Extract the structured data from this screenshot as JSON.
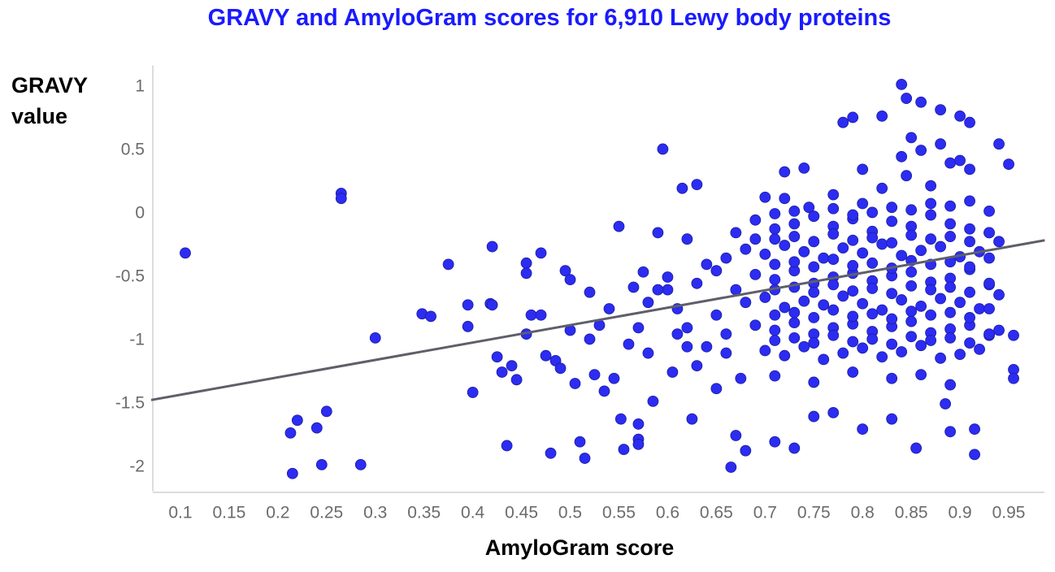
{
  "chart_data": {
    "type": "scatter",
    "title": "GRAVY and AmyloGram scores for 6,910 Lewy body proteins",
    "xlabel": "AmyloGram score",
    "ylabel": "GRAVY value",
    "color": "#2c2cf2",
    "xlim": [
      0.07,
      0.99
    ],
    "ylim": [
      -2.19,
      1.17
    ],
    "xticks": [
      0.1,
      0.15,
      0.2,
      0.25,
      0.3,
      0.35,
      0.4,
      0.45,
      0.5,
      0.55,
      0.6,
      0.65,
      0.7,
      0.75,
      0.8,
      0.85,
      0.9,
      0.95
    ],
    "yticks": [
      1,
      0.5,
      0,
      -0.5,
      -1,
      -1.5,
      -2
    ],
    "x": [
      0.105,
      0.265,
      0.265,
      0.213,
      0.22,
      0.215,
      0.245,
      0.24,
      0.25,
      0.285,
      0.3,
      0.348,
      0.357,
      0.375,
      0.395,
      0.395,
      0.4,
      0.418,
      0.42,
      0.42,
      0.425,
      0.43,
      0.435,
      0.44,
      0.445,
      0.455,
      0.455,
      0.455,
      0.46,
      0.47,
      0.47,
      0.475,
      0.48,
      0.485,
      0.49,
      0.495,
      0.5,
      0.5,
      0.505,
      0.51,
      0.515,
      0.52,
      0.52,
      0.525,
      0.53,
      0.535,
      0.54,
      0.545,
      0.55,
      0.552,
      0.555,
      0.56,
      0.565,
      0.57,
      0.57,
      0.57,
      0.575,
      0.58,
      0.585,
      0.59,
      0.595,
      0.6,
      0.605,
      0.61,
      0.615,
      0.62,
      0.625,
      0.63,
      0.64,
      0.65,
      0.66,
      0.665,
      0.67,
      0.68,
      0.69,
      0.7,
      0.71,
      0.72,
      0.73,
      0.74,
      0.75,
      0.77,
      0.78,
      0.79,
      0.8,
      0.82,
      0.83,
      0.84,
      0.845,
      0.855,
      0.86,
      0.88,
      0.885,
      0.89,
      0.9,
      0.91,
      0.915,
      0.915,
      0.95,
      0.955,
      0.955,
      0.955,
      0.94,
      0.94,
      0.6,
      0.61,
      0.62,
      0.63,
      0.64,
      0.65,
      0.66,
      0.67,
      0.62,
      0.58,
      0.57,
      0.59,
      0.63,
      0.66,
      0.65,
      0.675,
      0.67,
      0.72,
      0.745,
      0.77,
      0.8,
      0.82,
      0.845,
      0.87,
      0.89,
      0.91,
      0.69,
      0.71,
      0.73,
      0.75,
      0.77,
      0.79,
      0.81,
      0.83,
      0.85,
      0.87,
      0.89,
      0.91,
      0.93,
      0.68,
      0.7,
      0.72,
      0.74,
      0.76,
      0.78,
      0.8,
      0.82,
      0.84,
      0.86,
      0.88,
      0.9,
      0.92,
      0.94,
      0.69,
      0.71,
      0.73,
      0.75,
      0.77,
      0.79,
      0.81,
      0.83,
      0.85,
      0.87,
      0.89,
      0.91,
      0.93,
      0.68,
      0.7,
      0.72,
      0.74,
      0.76,
      0.78,
      0.8,
      0.82,
      0.84,
      0.86,
      0.88,
      0.9,
      0.92,
      0.94,
      0.69,
      0.71,
      0.73,
      0.75,
      0.77,
      0.79,
      0.81,
      0.83,
      0.85,
      0.87,
      0.89,
      0.91,
      0.93,
      0.7,
      0.72,
      0.74,
      0.76,
      0.78,
      0.8,
      0.82,
      0.84,
      0.86,
      0.88,
      0.9,
      0.92,
      0.71,
      0.75,
      0.79,
      0.83,
      0.86,
      0.89,
      0.8,
      0.84,
      0.86,
      0.88,
      0.9,
      0.85,
      0.71,
      0.73,
      0.75,
      0.77,
      0.79,
      0.81,
      0.83,
      0.85,
      0.87,
      0.89,
      0.91,
      0.93,
      0.71,
      0.73,
      0.75,
      0.77,
      0.79,
      0.81,
      0.83,
      0.85,
      0.87,
      0.89,
      0.91,
      0.93,
      0.71,
      0.73,
      0.75,
      0.77,
      0.79,
      0.81,
      0.83,
      0.85,
      0.87,
      0.89,
      0.91,
      0.93,
      0.71,
      0.73,
      0.75,
      0.77,
      0.79,
      0.81,
      0.83,
      0.85,
      0.87,
      0.89,
      0.91,
      0.93,
      0.71,
      0.73,
      0.75,
      0.77,
      0.79,
      0.81,
      0.83,
      0.85,
      0.87,
      0.89,
      0.91,
      0.93,
      0.71,
      0.73,
      0.75,
      0.77,
      0.79,
      0.81,
      0.83,
      0.85,
      0.87,
      0.89,
      0.91,
      0.93
    ],
    "y": [
      -0.31,
      0.16,
      0.12,
      -1.73,
      -1.63,
      -2.05,
      -1.98,
      -1.69,
      -1.56,
      -1.98,
      -0.98,
      -0.79,
      -0.81,
      -0.4,
      -0.72,
      -0.89,
      -1.41,
      -0.71,
      -0.26,
      -0.72,
      -1.13,
      -1.25,
      -1.83,
      -1.2,
      -1.31,
      -0.39,
      -0.47,
      -0.95,
      -0.8,
      -0.31,
      -0.8,
      -1.12,
      -1.89,
      -1.16,
      -1.22,
      -0.45,
      -0.52,
      -0.92,
      -1.34,
      -1.8,
      -1.93,
      -0.62,
      -0.99,
      -1.27,
      -0.88,
      -1.4,
      -0.75,
      -1.3,
      -0.1,
      -1.62,
      -1.86,
      -1.03,
      -0.58,
      -1.66,
      -1.78,
      -1.82,
      -0.46,
      -1.1,
      -1.48,
      -0.15,
      0.51,
      -0.6,
      -1.25,
      -0.95,
      0.2,
      -0.2,
      -1.62,
      0.23,
      -1.05,
      -1.38,
      -0.35,
      -2.0,
      -1.75,
      -1.87,
      -0.2,
      0.13,
      -1.8,
      0.33,
      -1.85,
      0.36,
      -1.6,
      -1.57,
      0.72,
      0.76,
      -1.7,
      0.77,
      -1.62,
      1.02,
      0.91,
      -1.85,
      0.88,
      0.82,
      -1.5,
      -1.72,
      0.77,
      0.72,
      -1.9,
      -1.7,
      0.39,
      -1.23,
      -1.3,
      -0.96,
      0.55,
      -0.92,
      -0.5,
      -0.75,
      -0.9,
      -0.55,
      -0.4,
      -0.8,
      -1.1,
      -0.6,
      -1.05,
      -0.7,
      -0.9,
      -0.6,
      -1.2,
      -0.95,
      -0.45,
      -1.3,
      -0.15,
      0.12,
      0.05,
      0.15,
      0.08,
      0.2,
      0.3,
      0.22,
      0.4,
      0.35,
      -0.05,
      -0.12,
      -0.08,
      -0.02,
      -0.1,
      -0.04,
      -0.14,
      -0.06,
      -0.1,
      -0.01,
      -0.08,
      -0.12,
      -0.15,
      -0.28,
      -0.32,
      -0.25,
      -0.3,
      -0.35,
      -0.27,
      -0.31,
      -0.24,
      -0.33,
      -0.29,
      -0.26,
      -0.34,
      -0.3,
      -0.22,
      -0.48,
      -0.52,
      -0.45,
      -0.55,
      -0.5,
      -0.47,
      -0.53,
      -0.49,
      -0.46,
      -0.54,
      -0.51,
      -0.44,
      -0.56,
      -0.7,
      -0.66,
      -0.74,
      -0.69,
      -0.72,
      -0.65,
      -0.71,
      -0.76,
      -0.68,
      -0.73,
      -0.67,
      -0.7,
      -0.75,
      -0.64,
      -0.88,
      -0.92,
      -0.86,
      -0.95,
      -0.9,
      -0.87,
      -0.93,
      -0.89,
      -0.85,
      -0.94,
      -0.91,
      -0.88,
      -0.96,
      -1.08,
      -1.12,
      -1.05,
      -1.15,
      -1.1,
      -1.06,
      -1.13,
      -1.09,
      -1.04,
      -1.14,
      -1.11,
      -1.07,
      -1.28,
      -1.33,
      -1.25,
      -1.3,
      -1.27,
      -1.35,
      0.35,
      0.45,
      0.5,
      0.55,
      0.42,
      0.6,
      -0.2,
      -0.18,
      -0.22,
      -0.16,
      -0.21,
      -0.19,
      -0.23,
      -0.17,
      -0.2,
      -0.18,
      -0.22,
      -0.15,
      -0.4,
      -0.38,
      -0.42,
      -0.36,
      -0.41,
      -0.39,
      -0.43,
      -0.37,
      -0.4,
      -0.38,
      -0.42,
      -0.35,
      -0.6,
      -0.58,
      -0.62,
      -0.56,
      -0.61,
      -0.59,
      -0.63,
      -0.57,
      -0.6,
      -0.58,
      -0.62,
      -0.55,
      -0.8,
      -0.78,
      -0.82,
      -0.76,
      -0.81,
      -0.79,
      -0.83,
      -0.77,
      -0.8,
      -0.78,
      -0.82,
      -0.75,
      -1.0,
      -0.98,
      -1.02,
      -0.96,
      -1.01,
      -0.99,
      -1.03,
      -0.97,
      -1.0,
      -0.98,
      -1.02,
      -0.95,
      0.0,
      0.02,
      -0.02,
      0.04,
      -0.01,
      0.01,
      0.05,
      0.03,
      0.08,
      0.06,
      0.1,
      0.02
    ],
    "trendline": {
      "x": [
        0.07,
        0.987
      ],
      "y": [
        -1.47,
        -0.21
      ],
      "color": "#5f5f6b"
    }
  }
}
